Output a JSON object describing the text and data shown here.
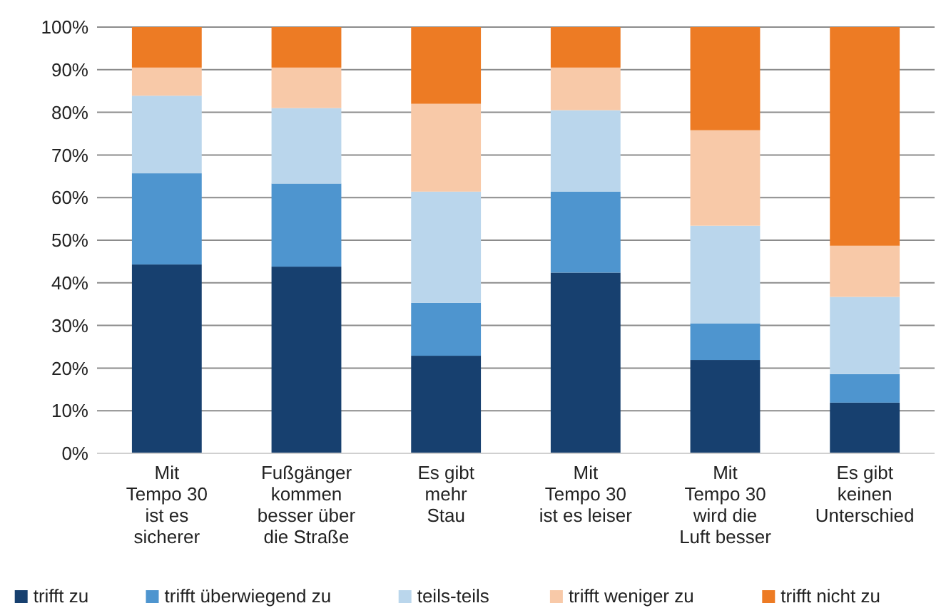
{
  "chart_data": {
    "type": "bar",
    "stacked": true,
    "categories": [
      "Mit\nTempo 30\nist es\nsicherer",
      "Fußgänger\nkommen\nbesser über\ndie Straße",
      "Es gibt\nmehr\nStau",
      "Mit\nTempo 30\nist es leiser",
      "Mit\nTempo 30\nwird die\nLuft besser",
      "Es gibt\nkeinen\nUnterschied"
    ],
    "series": [
      {
        "name": "trifft zu",
        "color": "#17406f",
        "values": [
          44.3,
          43.8,
          22.9,
          42.4,
          21.9,
          11.9
        ]
      },
      {
        "name": "trifft überwiegend zu",
        "color": "#4e95cf",
        "values": [
          21.4,
          19.5,
          12.4,
          19,
          8.6,
          6.7
        ]
      },
      {
        "name": "teils-teils",
        "color": "#bad6ec",
        "values": [
          18.2,
          17.7,
          26.1,
          19.1,
          22.9,
          18.1
        ]
      },
      {
        "name": "trifft weniger zu",
        "color": "#f8c9a8",
        "values": [
          6.6,
          9.5,
          20.6,
          10,
          22.4,
          12
        ]
      },
      {
        "name": "trifft nicht zu",
        "color": "#ed7b24",
        "values": [
          9.5,
          9.5,
          18,
          9.5,
          24.2,
          51.3
        ]
      }
    ],
    "ylim": [
      0,
      100
    ],
    "yticks": [
      {
        "value": 0,
        "label": "0%"
      },
      {
        "value": 10,
        "label": "10%"
      },
      {
        "value": 20,
        "label": "20%"
      },
      {
        "value": 30,
        "label": "30%"
      },
      {
        "value": 40,
        "label": "40%"
      },
      {
        "value": 50,
        "label": "50%"
      },
      {
        "value": 60,
        "label": "60%"
      },
      {
        "value": 70,
        "label": "70%"
      },
      {
        "value": 80,
        "label": "80%"
      },
      {
        "value": 90,
        "label": "90%"
      },
      {
        "value": 100,
        "label": "100%"
      }
    ],
    "grid": "y",
    "legend": "bottom"
  }
}
